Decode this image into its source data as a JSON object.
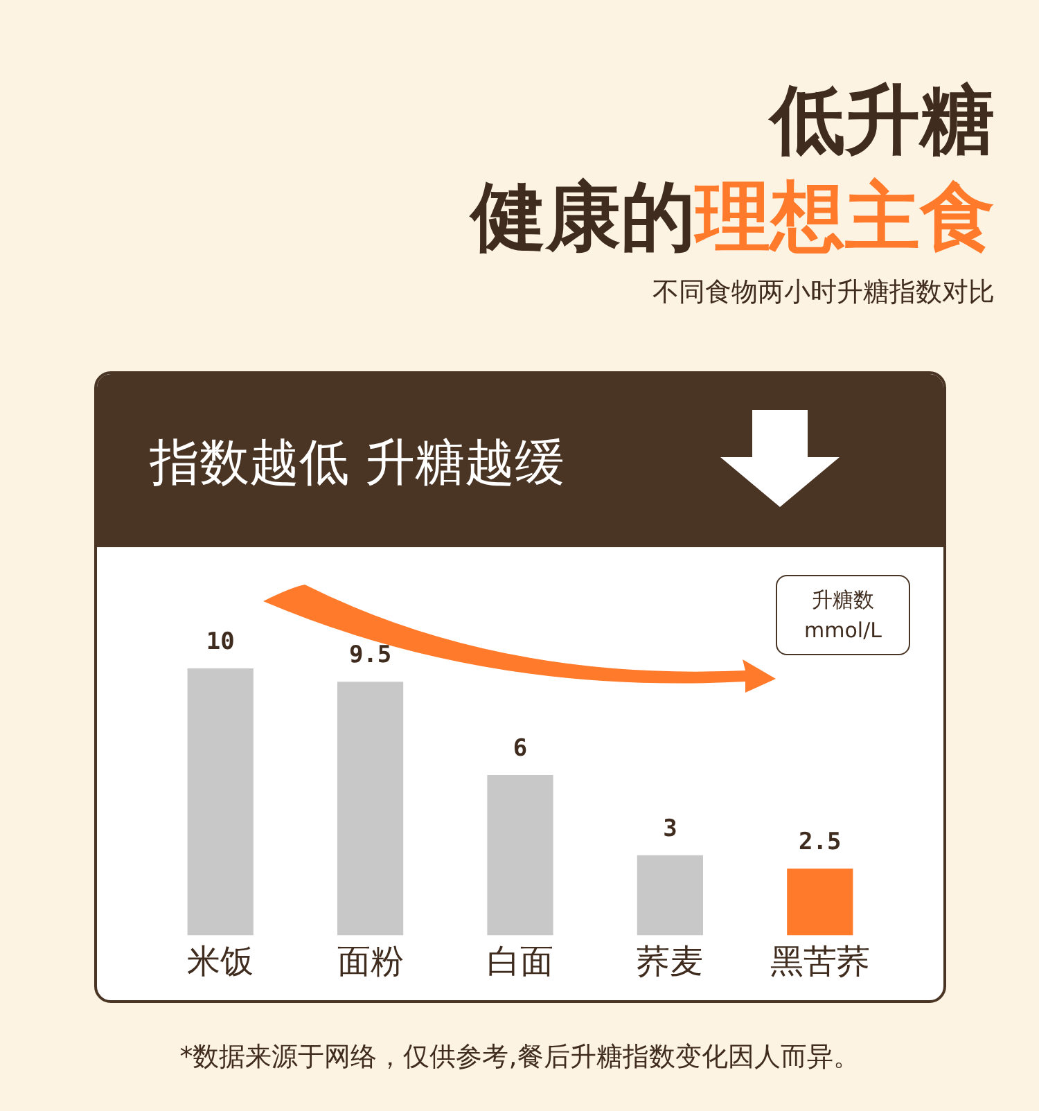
{
  "chart_data": {
    "type": "bar",
    "title": "低升糖健康的理想主食",
    "subtitle": "不同食物两小时升糖指数对比",
    "ylabel": "升糖数\nmmol/L",
    "annotations": [
      "指数越低 升糖越缓",
      "*数据来源于网络，仅供参考,餐后升糖指数变化因人而异。"
    ],
    "categories": [
      "米饭",
      "面粉",
      "白面",
      "荞麦",
      "黑苦荞"
    ],
    "values": [
      10,
      9.5,
      6,
      3,
      2.5
    ],
    "colors": [
      "#c8c8c8",
      "#c8c8c8",
      "#c8c8c8",
      "#c8c8c8",
      "#ff7a2a"
    ],
    "data_labels": true,
    "grid": false,
    "legend": false
  }
}
